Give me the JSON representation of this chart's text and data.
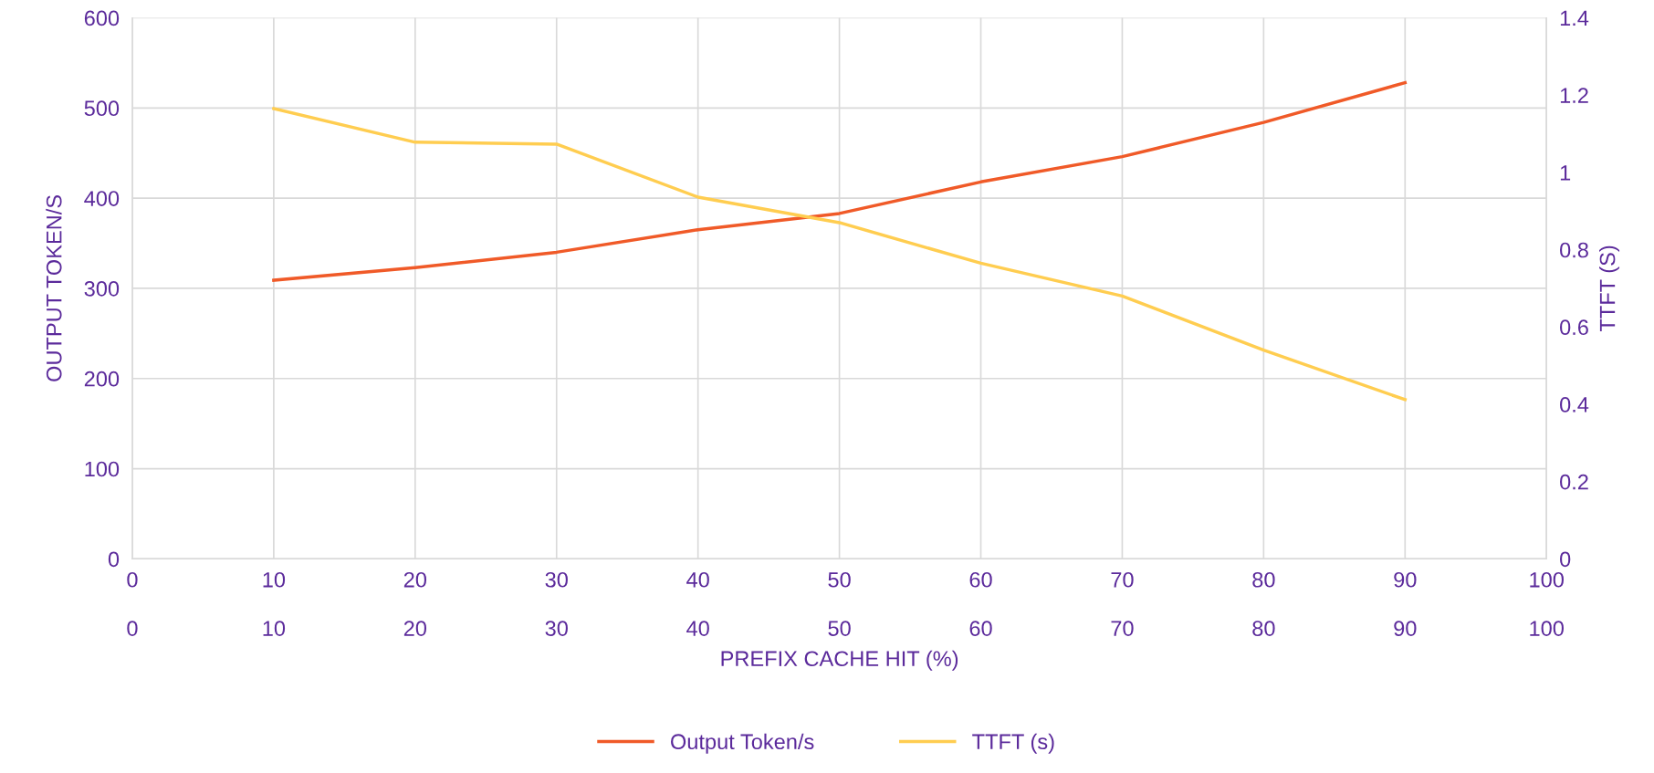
{
  "chart_data": {
    "type": "line",
    "x": [
      10,
      20,
      30,
      40,
      50,
      60,
      70,
      80,
      90
    ],
    "series": [
      {
        "name": "Output Token/s",
        "color": "#f05a28",
        "values": [
          309,
          323,
          340,
          365,
          383,
          418,
          446,
          484,
          528
        ]
      },
      {
        "name": "TTFT (s)",
        "color": "#ffcd50",
        "axis": "y2",
        "values": [
          1.165,
          1.078,
          1.073,
          0.936,
          0.87,
          0.765,
          0.68,
          0.54,
          0.412
        ]
      }
    ],
    "xlabel": "PREFIX CACHE HIT (%)",
    "ylabel": "OUTPUT TOKEN/S",
    "y2label": "TTFT (S)",
    "xlim": [
      0,
      100
    ],
    "xticks": [
      0,
      10,
      20,
      30,
      40,
      50,
      60,
      70,
      80,
      90,
      100
    ],
    "x2lim": [
      0,
      100
    ],
    "x2ticks": [
      0,
      10,
      20,
      30,
      40,
      50,
      60,
      70,
      80,
      90,
      100
    ],
    "ylim": [
      0,
      600
    ],
    "yticks": [
      0,
      100,
      200,
      300,
      400,
      500,
      600
    ],
    "y2lim": [
      0,
      1.4
    ],
    "y2ticks": [
      0,
      0.2,
      0.4,
      0.6,
      0.8,
      1,
      1.2,
      1.4
    ],
    "grid": true,
    "legend": "bottom",
    "line_style": "solid",
    "marker": "none"
  }
}
